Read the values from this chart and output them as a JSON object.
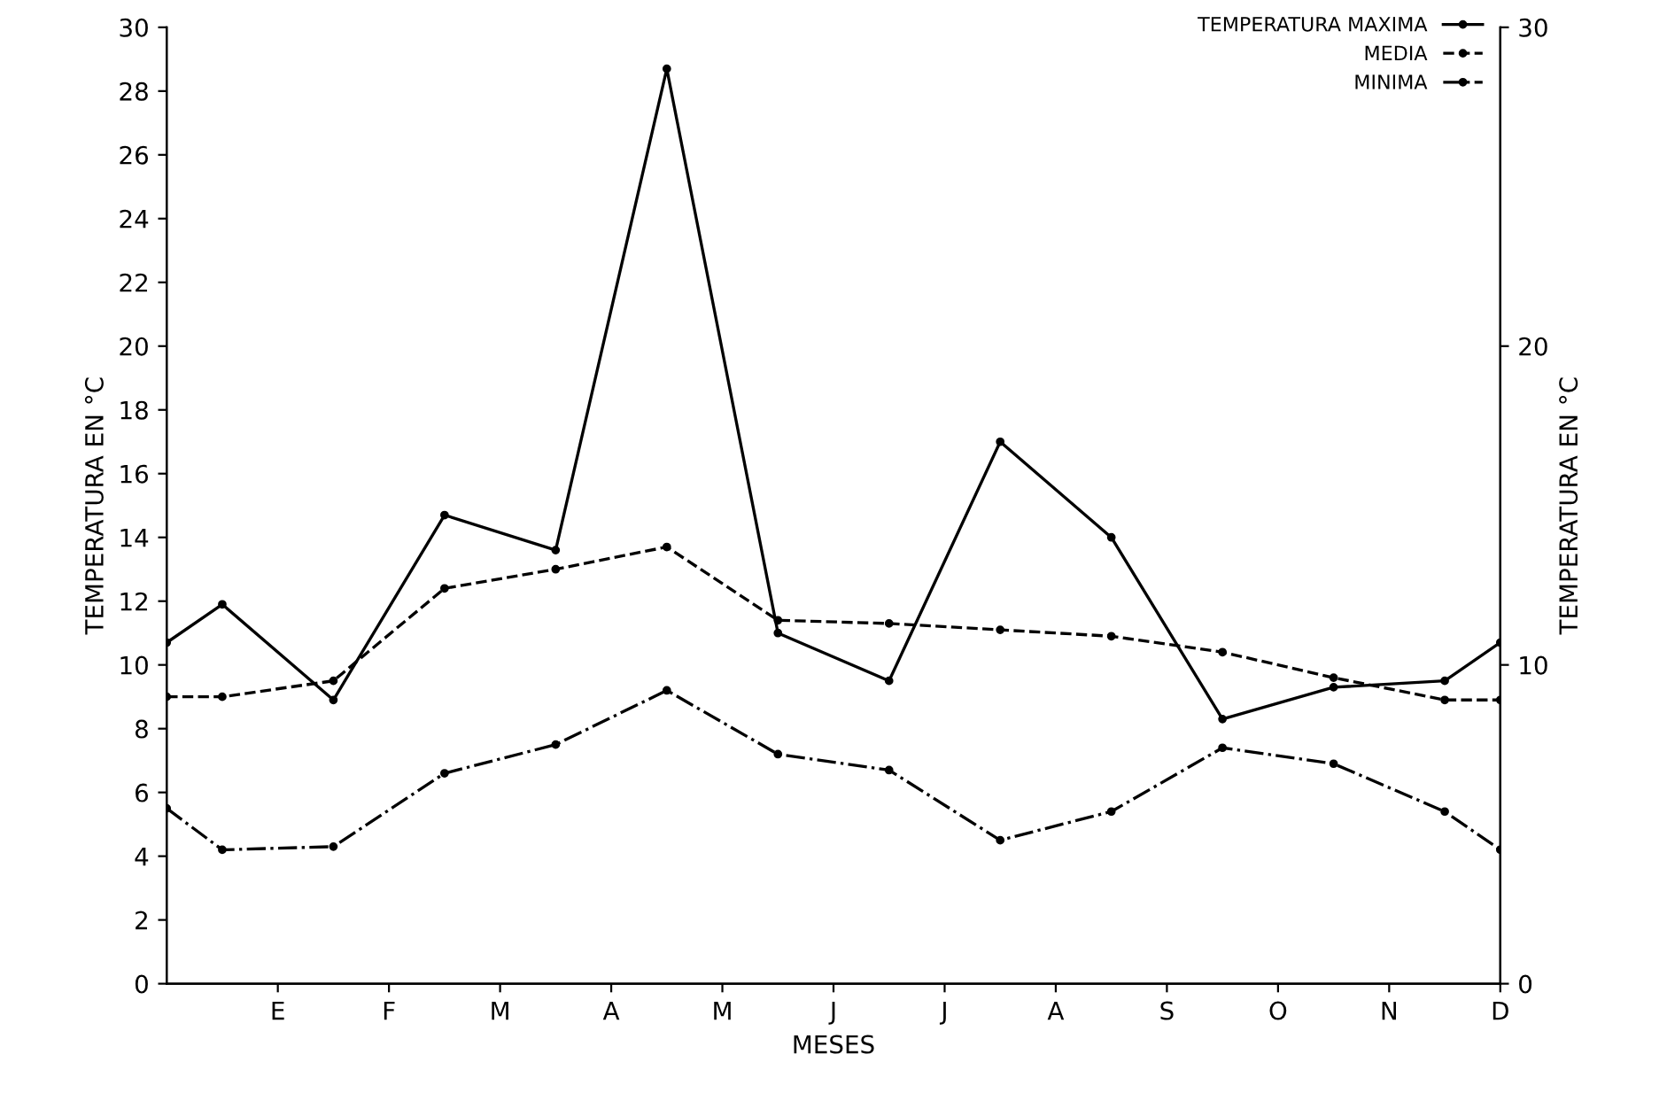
{
  "chart_data": {
    "type": "line",
    "xlabel": "MESES",
    "ylabel": "TEMPERATURA EN °C",
    "y2label": "TEMPERATURA EN °C",
    "categories": [
      null,
      null,
      "E",
      null,
      "F",
      null,
      "M",
      null,
      "A",
      null,
      "M",
      null,
      "J",
      null,
      "J",
      null,
      "A",
      null,
      "S",
      null,
      "O",
      null,
      "N",
      null,
      "D"
    ],
    "series": [
      {
        "name": "TEMPERATURA MAXIMA",
        "color": "#000000",
        "line_style": "solid",
        "values": [
          10.7,
          11.9,
          null,
          8.9,
          null,
          14.7,
          null,
          13.6,
          null,
          28.7,
          null,
          11.0,
          null,
          9.5,
          null,
          17.0,
          null,
          14.0,
          null,
          8.3,
          null,
          9.3,
          null,
          9.5,
          10.7
        ]
      },
      {
        "name": "MEDIA",
        "color": "#000000",
        "line_style": "dashed",
        "values": [
          9.0,
          9.0,
          null,
          9.5,
          null,
          12.4,
          null,
          13.0,
          null,
          13.7,
          null,
          11.4,
          null,
          11.3,
          null,
          11.1,
          null,
          10.9,
          null,
          10.4,
          null,
          9.6,
          null,
          8.9,
          8.9
        ]
      },
      {
        "name": "MINIMA",
        "color": "#000000",
        "line_style": "dashdot",
        "values": [
          5.5,
          4.2,
          null,
          4.3,
          null,
          6.6,
          null,
          7.5,
          null,
          9.2,
          null,
          7.2,
          null,
          6.7,
          null,
          4.5,
          null,
          5.4,
          null,
          7.4,
          null,
          6.9,
          null,
          5.4,
          4.2
        ]
      }
    ],
    "ylim": [
      0,
      30
    ],
    "yticks": [
      0,
      2,
      4,
      6,
      8,
      10,
      12,
      14,
      16,
      18,
      20,
      22,
      24,
      26,
      28,
      30
    ],
    "y2lim": [
      0,
      30
    ],
    "y2ticks": [
      0,
      10,
      20,
      30
    ],
    "marker": "circle",
    "grid": false,
    "legend": "top right"
  }
}
